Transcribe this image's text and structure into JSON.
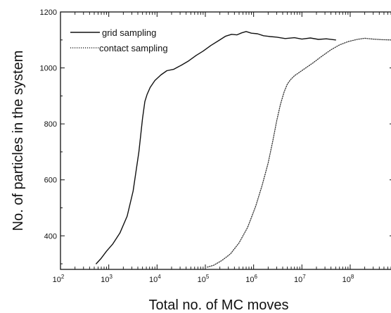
{
  "chart_data": {
    "type": "line",
    "xlabel": "Total no. of MC moves",
    "ylabel": "No. of particles in the system",
    "x_scale": "log",
    "xlim": [
      100,
      700000000
    ],
    "ylim": [
      280,
      1200
    ],
    "x_ticks": [
      {
        "base": "10",
        "exp": "2",
        "value": 100
      },
      {
        "base": "10",
        "exp": "3",
        "value": 1000
      },
      {
        "base": "10",
        "exp": "4",
        "value": 10000
      },
      {
        "base": "10",
        "exp": "5",
        "value": 100000
      },
      {
        "base": "10",
        "exp": "6",
        "value": 1000000
      },
      {
        "base": "10",
        "exp": "7",
        "value": 10000000
      },
      {
        "base": "10",
        "exp": "8",
        "value": 100000000
      }
    ],
    "y_ticks": [
      "400",
      "600",
      "800",
      "1000",
      "1200"
    ],
    "y_tick_values": [
      400,
      600,
      800,
      1000,
      1200
    ],
    "grid": false,
    "legend_position": "top-left",
    "series": [
      {
        "name": "grid sampling",
        "style": "solid",
        "color": "#111111",
        "x": [
          550,
          700,
          900,
          1200,
          1700,
          2400,
          3200,
          4200,
          5000,
          5600,
          6200,
          7200,
          9000,
          12000,
          16000,
          22000,
          32000,
          45000,
          65000,
          90000,
          130000,
          190000,
          260000,
          350000,
          450000,
          560000,
          700000,
          900000,
          1200000,
          1600000,
          2200000,
          3000000,
          4500000,
          7000000,
          10000000,
          15000000,
          22000000,
          32000000,
          50000000
        ],
        "y": [
          300,
          320,
          345,
          370,
          410,
          470,
          560,
          700,
          820,
          880,
          905,
          930,
          955,
          975,
          990,
          995,
          1010,
          1025,
          1045,
          1060,
          1080,
          1098,
          1113,
          1120,
          1118,
          1125,
          1130,
          1124,
          1122,
          1115,
          1112,
          1110,
          1105,
          1108,
          1103,
          1107,
          1102,
          1104,
          1100
        ]
      },
      {
        "name": "contact sampling",
        "style": "dotted",
        "color": "#333333",
        "x": [
          110000,
          150000,
          220000,
          330000,
          500000,
          750000,
          1100000,
          1500000,
          2000000,
          2500000,
          3000000,
          3600000,
          4300000,
          5000000,
          5800000,
          7000000,
          9000000,
          12000000,
          17000000,
          25000000,
          40000000,
          60000000,
          90000000,
          140000000,
          200000000,
          300000000,
          450000000,
          700000000
        ],
        "y": [
          288,
          295,
          312,
          335,
          375,
          430,
          505,
          580,
          660,
          740,
          810,
          870,
          915,
          942,
          958,
          972,
          985,
          1000,
          1018,
          1040,
          1065,
          1082,
          1094,
          1102,
          1106,
          1103,
          1101,
          1100
        ]
      }
    ]
  }
}
